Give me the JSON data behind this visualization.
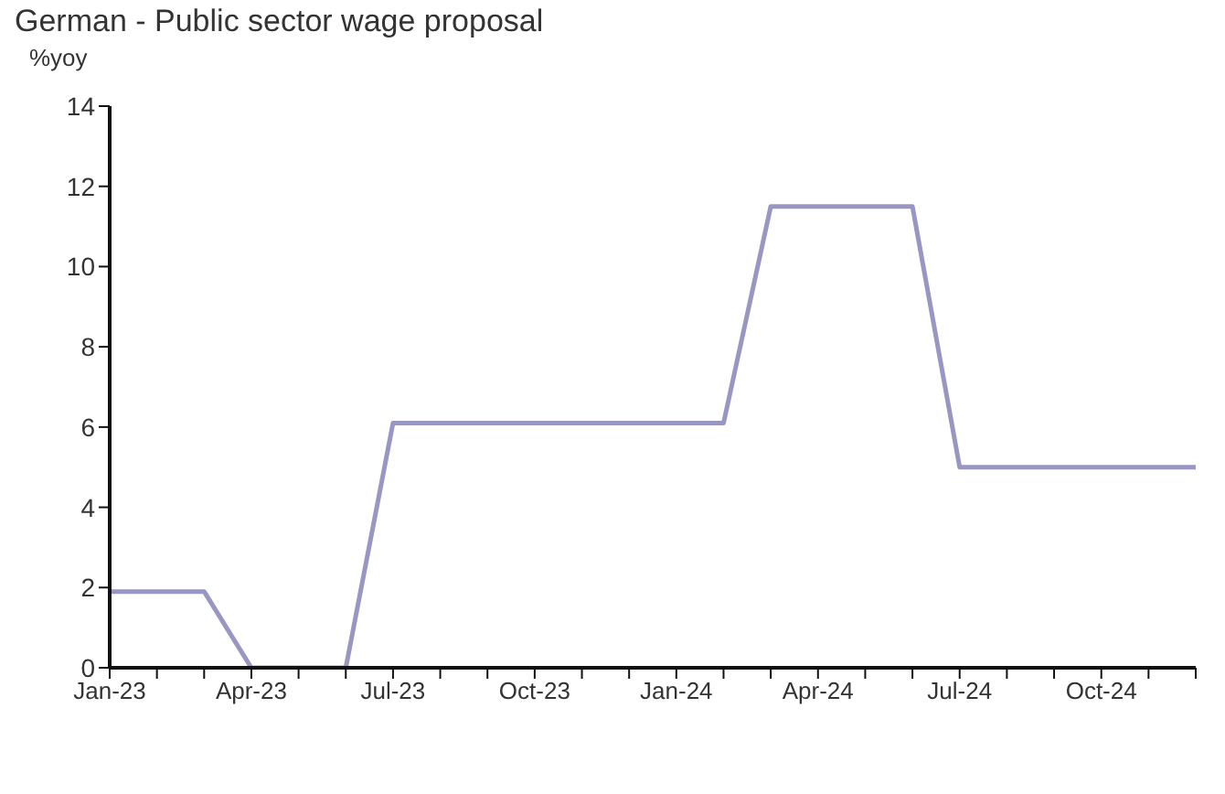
{
  "chart_data": {
    "type": "line",
    "title": "German - Public sector wage proposal",
    "ylabel": "%yoy",
    "categories": [
      "Jan-23",
      null,
      null,
      "Apr-23",
      null,
      null,
      "Jul-23",
      null,
      null,
      "Oct-23",
      null,
      null,
      "Jan-24",
      null,
      null,
      "Apr-24",
      null,
      null,
      "Jul-24",
      null,
      null,
      "Oct-24",
      null,
      null
    ],
    "series": [
      {
        "color": "#9896c2",
        "values": [
          1.9,
          1.9,
          1.9,
          0,
          0,
          0,
          6.1,
          6.1,
          6.1,
          6.1,
          6.1,
          6.1,
          6.1,
          6.1,
          11.5,
          11.5,
          11.5,
          11.5,
          5.0,
          5.0,
          5.0,
          5.0,
          5.0,
          5.0
        ]
      }
    ],
    "ylim": [
      0,
      14
    ],
    "yticks": [
      0,
      2,
      4,
      6,
      8,
      10,
      12,
      14
    ],
    "grid": false,
    "legend": false,
    "marker": "none",
    "line_style": "solid"
  }
}
